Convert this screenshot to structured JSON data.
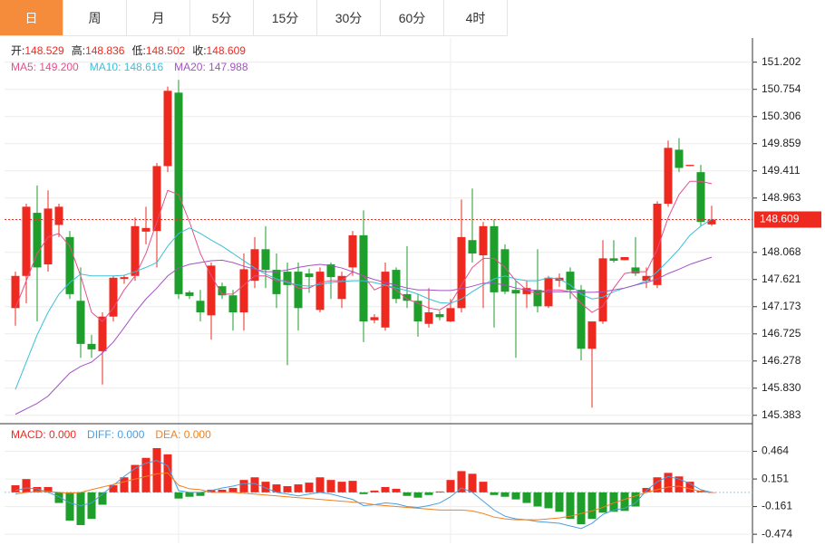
{
  "tabs": [
    "日",
    "周",
    "月",
    "5分",
    "15分",
    "30分",
    "60分",
    "4时"
  ],
  "active_tab": 0,
  "chart_data": [
    {
      "type": "candlestick",
      "header": [
        {
          "label": "开:",
          "value": "148.529"
        },
        {
          "label": "高:",
          "value": "148.836"
        },
        {
          "label": "低:",
          "value": "148.502"
        },
        {
          "label": "收:",
          "value": "148.609"
        }
      ],
      "up_color": "#ee2a20",
      "down_color": "#1e9e2a",
      "open": [
        147.15,
        147.68,
        148.72,
        147.87,
        148.52,
        148.32,
        147.27,
        146.56,
        146.44,
        147.01,
        147.63,
        147.68,
        148.41,
        148.42,
        149.49,
        150.7,
        147.41,
        147.27,
        147.03,
        147.51,
        147.36,
        147.08,
        147.6,
        148.12,
        147.78,
        147.75,
        147.75,
        147.72,
        147.12,
        147.87,
        147.3,
        147.82,
        148.35,
        146.95,
        146.83,
        147.78,
        147.38,
        147.27,
        146.89,
        147.05,
        146.93,
        147.15,
        148.27,
        148.02,
        148.5,
        148.12,
        147.45,
        147.38,
        147.45,
        147.18,
        147.6,
        147.75,
        147.45,
        146.48,
        146.93,
        147.97,
        147.94,
        147.82,
        147.6,
        147.53,
        148.87,
        149.76,
        149.49,
        149.39,
        148.529
      ],
      "high": [
        147.75,
        148.87,
        149.17,
        149.09,
        148.87,
        148.42,
        147.82,
        146.71,
        147.08,
        147.68,
        147.7,
        148.64,
        148.82,
        149.54,
        150.8,
        150.91,
        147.44,
        147.45,
        147.9,
        147.57,
        147.45,
        148.05,
        148.32,
        148.5,
        148.05,
        147.9,
        147.9,
        147.8,
        147.82,
        147.9,
        147.75,
        148.42,
        148.76,
        147.05,
        147.9,
        147.82,
        148.17,
        147.38,
        147.48,
        147.1,
        147.3,
        148.94,
        149.12,
        148.57,
        148.61,
        148.2,
        147.6,
        147.6,
        148.12,
        147.68,
        147.72,
        147.82,
        147.53,
        146.93,
        148.27,
        148.27,
        147.99,
        148.32,
        147.82,
        148.91,
        149.91,
        149.95,
        149.51,
        149.51,
        148.836
      ],
      "low": [
        146.86,
        147.23,
        146.93,
        147.75,
        148.32,
        147.3,
        146.33,
        146.33,
        145.89,
        146.93,
        147.55,
        147.6,
        148.2,
        147.82,
        149.39,
        147.3,
        147.3,
        146.93,
        146.63,
        147.3,
        146.78,
        146.78,
        147.48,
        147.48,
        147.15,
        146.21,
        146.78,
        147.4,
        147.08,
        147.3,
        147.15,
        147.68,
        146.59,
        146.9,
        146.78,
        147.23,
        147.15,
        146.68,
        146.83,
        146.95,
        146.92,
        147.08,
        147.9,
        147.15,
        146.83,
        147.38,
        146.33,
        147.15,
        147.08,
        147.15,
        147.5,
        147.3,
        146.29,
        145.51,
        146.89,
        147.9,
        147.94,
        147.68,
        147.48,
        147.48,
        148.82,
        149.39,
        149.49,
        148.5,
        148.502
      ],
      "close": [
        147.68,
        148.82,
        147.82,
        148.79,
        148.82,
        147.38,
        146.56,
        146.47,
        147.01,
        147.65,
        147.66,
        148.5,
        148.47,
        149.49,
        150.73,
        147.38,
        147.35,
        147.08,
        147.85,
        147.36,
        147.08,
        147.79,
        148.12,
        147.78,
        147.38,
        147.53,
        147.15,
        147.66,
        147.75,
        147.66,
        147.68,
        148.35,
        146.93,
        147.0,
        147.75,
        147.3,
        147.27,
        146.93,
        147.08,
        147.0,
        147.15,
        148.32,
        148.05,
        148.5,
        147.41,
        147.42,
        147.39,
        147.48,
        147.18,
        147.65,
        147.65,
        147.45,
        146.48,
        146.93,
        147.97,
        147.93,
        147.99,
        147.72,
        147.68,
        148.87,
        149.79,
        149.46,
        149.51,
        148.57,
        148.609
      ],
      "lines": [
        {
          "legend": "MA5: 149.200",
          "color": "#e2508c",
          "values": [
            147.15,
            147.6,
            148.05,
            148.32,
            148.38,
            148.17,
            147.68,
            147.08,
            146.93,
            147.15,
            147.45,
            147.68,
            148.05,
            148.57,
            149.09,
            149.02,
            148.57,
            148.05,
            147.68,
            147.38,
            147.38,
            147.53,
            147.68,
            147.68,
            147.6,
            147.6,
            147.48,
            147.48,
            147.57,
            147.6,
            147.6,
            147.75,
            147.68,
            147.45,
            147.53,
            147.45,
            147.3,
            147.23,
            147.15,
            147.12,
            147.23,
            147.53,
            147.82,
            147.97,
            147.97,
            147.82,
            147.6,
            147.45,
            147.38,
            147.45,
            147.45,
            147.42,
            147.23,
            147.08,
            147.18,
            147.48,
            147.72,
            147.75,
            147.75,
            148.12,
            148.64,
            149.02,
            149.24,
            149.24,
            149.2
          ]
        },
        {
          "legend": "MA10: 148.616",
          "color": "#3cbfd8",
          "values": [
            145.81,
            146.26,
            146.71,
            147.08,
            147.38,
            147.57,
            147.71,
            147.68,
            147.68,
            147.68,
            147.69,
            147.75,
            147.82,
            147.9,
            148.17,
            148.38,
            148.47,
            148.38,
            148.27,
            148.17,
            148.05,
            147.93,
            147.81,
            147.71,
            147.63,
            147.57,
            147.53,
            147.51,
            147.54,
            147.57,
            147.59,
            147.6,
            147.6,
            147.57,
            147.53,
            147.48,
            147.44,
            147.38,
            147.3,
            147.24,
            147.23,
            147.3,
            147.42,
            147.53,
            147.63,
            147.68,
            147.63,
            147.6,
            147.6,
            147.65,
            147.63,
            147.53,
            147.38,
            147.3,
            147.33,
            147.42,
            147.48,
            147.53,
            147.6,
            147.75,
            147.93,
            148.12,
            148.35,
            148.5,
            148.616
          ]
        },
        {
          "legend": "MA20: 147.988",
          "color": "#a452c2",
          "values": [
            145.4,
            145.49,
            145.58,
            145.7,
            145.89,
            146.08,
            146.19,
            146.26,
            146.41,
            146.59,
            146.83,
            147.08,
            147.3,
            147.48,
            147.68,
            147.81,
            147.87,
            147.9,
            147.93,
            147.94,
            147.9,
            147.84,
            147.79,
            147.75,
            147.75,
            147.78,
            147.82,
            147.85,
            147.87,
            147.85,
            147.81,
            147.75,
            147.68,
            147.62,
            147.57,
            147.53,
            147.48,
            147.45,
            147.45,
            147.44,
            147.44,
            147.47,
            147.51,
            147.56,
            147.56,
            147.53,
            147.48,
            147.45,
            147.44,
            147.42,
            147.42,
            147.42,
            147.41,
            147.41,
            147.42,
            147.45,
            147.48,
            147.53,
            147.57,
            147.63,
            147.72,
            147.79,
            147.87,
            147.93,
            147.988
          ]
        }
      ],
      "current_price": {
        "value": 148.609,
        "label": "148.609"
      },
      "ylim": [
        145.29,
        151.6
      ],
      "yticks": [
        151.202,
        150.754,
        150.306,
        149.859,
        149.411,
        148.963,
        148.068,
        147.621,
        147.173,
        146.725,
        146.278,
        {
          "value": 145.83,
          "label": "145.830"
        },
        145.383
      ],
      "grid": true
    },
    {
      "type": "macd",
      "header": [
        {
          "text": "MACD: 0.000",
          "color": "#ee2a20"
        },
        {
          "text": "DIFF: 0.000",
          "color": "#4a9ee0"
        },
        {
          "text": "DEA: 0.000",
          "color": "#f08020"
        }
      ],
      "up_color": "#ee2a20",
      "down_color": "#1e9e2a",
      "values": [
        0.08,
        0.15,
        0.06,
        0.06,
        -0.12,
        -0.32,
        -0.37,
        -0.3,
        -0.14,
        0.08,
        0.17,
        0.31,
        0.39,
        0.5,
        0.43,
        -0.07,
        -0.05,
        -0.04,
        0.03,
        0.03,
        0.05,
        0.14,
        0.17,
        0.12,
        0.09,
        0.07,
        0.09,
        0.11,
        0.17,
        0.14,
        0.12,
        0.13,
        -0.02,
        0.02,
        0.06,
        0.04,
        -0.04,
        -0.06,
        -0.03,
        0.01,
        0.14,
        0.24,
        0.21,
        0.12,
        -0.03,
        -0.05,
        -0.08,
        -0.12,
        -0.16,
        -0.18,
        -0.22,
        -0.3,
        -0.36,
        -0.3,
        -0.23,
        -0.22,
        -0.21,
        -0.16,
        0.05,
        0.17,
        0.22,
        0.18,
        0.12,
        0.02,
        0.0
      ],
      "lines": [
        {
          "color": "#4a9ee0",
          "values": [
            0.02,
            0.05,
            0.04,
            0.0,
            -0.05,
            -0.12,
            -0.15,
            -0.12,
            -0.02,
            0.08,
            0.18,
            0.27,
            0.33,
            0.36,
            0.3,
            0.02,
            0.0,
            0.0,
            0.02,
            0.05,
            0.07,
            0.1,
            0.1,
            0.05,
            0.0,
            -0.02,
            -0.04,
            -0.02,
            0.0,
            -0.02,
            -0.05,
            -0.08,
            -0.15,
            -0.14,
            -0.12,
            -0.13,
            -0.16,
            -0.17,
            -0.15,
            -0.12,
            -0.05,
            0.05,
            0.0,
            -0.1,
            -0.2,
            -0.27,
            -0.3,
            -0.31,
            -0.33,
            -0.34,
            -0.35,
            -0.38,
            -0.41,
            -0.35,
            -0.25,
            -0.2,
            -0.18,
            -0.12,
            0.02,
            0.12,
            0.18,
            0.15,
            0.1,
            0.03,
            0.0
          ]
        },
        {
          "color": "#f08020",
          "values": [
            -0.02,
            0.0,
            0.01,
            0.01,
            0.0,
            -0.01,
            0.0,
            0.03,
            0.06,
            0.09,
            0.12,
            0.15,
            0.18,
            0.21,
            0.22,
            0.08,
            0.04,
            0.03,
            0.0,
            0.0,
            0.0,
            -0.01,
            -0.02,
            -0.03,
            -0.04,
            -0.05,
            -0.06,
            -0.07,
            -0.08,
            -0.09,
            -0.1,
            -0.11,
            -0.12,
            -0.14,
            -0.15,
            -0.16,
            -0.17,
            -0.18,
            -0.19,
            -0.2,
            -0.2,
            -0.2,
            -0.21,
            -0.24,
            -0.28,
            -0.3,
            -0.31,
            -0.31,
            -0.31,
            -0.3,
            -0.29,
            -0.27,
            -0.24,
            -0.21,
            -0.17,
            -0.12,
            -0.08,
            -0.04,
            0.0,
            0.03,
            0.06,
            0.07,
            0.04,
            0.01,
            0.0
          ]
        }
      ],
      "ylim": [
        -0.575,
        0.756
      ],
      "yticks": [
        0.464,
        0.151,
        -0.161,
        -0.474
      ],
      "grid": true
    }
  ]
}
